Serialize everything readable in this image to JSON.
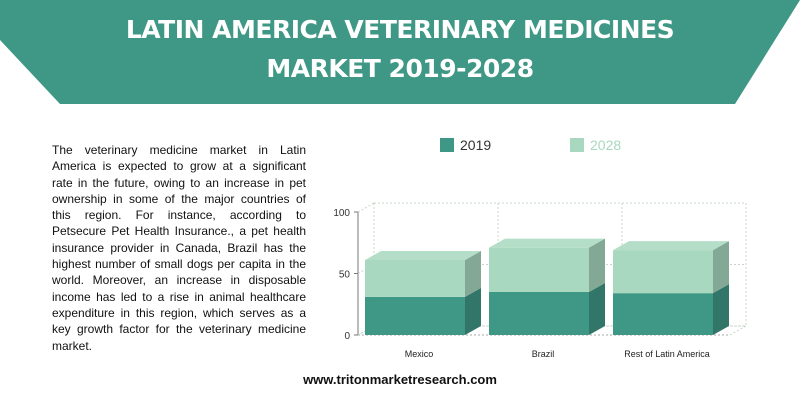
{
  "header": {
    "title_line1": "LATIN AMERICA VETERINARY MEDICINES",
    "title_line2": "MARKET  2019-2028"
  },
  "body": {
    "paragraph": "The veterinary medicine market in Latin America is expected to grow at a significant rate in the future, owing to an increase in pet ownership in some of the major countries of this region. For instance, according to Petsecure Pet Health Insurance., a pet health insurance provider in Canada, Brazil has the highest number of small dogs per capita in the world. Moreover, an increase in disposable income has led to a rise in animal healthcare expenditure in this region, which serves as a key growth factor for the veterinary medicine market."
  },
  "footer": {
    "url": "www.tritonmarketresearch.com"
  },
  "colors": {
    "banner": "#3f9785",
    "series_2019": "#3f9785",
    "series_2028": "#a8d8c0"
  },
  "chart_data": {
    "type": "bar",
    "stacked": true,
    "style": "3d",
    "categories": [
      "Mexico",
      "Brazil",
      "Rest of Latin America"
    ],
    "series": [
      {
        "name": "2019",
        "values": [
          31,
          35,
          34
        ]
      },
      {
        "name": "2028",
        "values": [
          30,
          36,
          35
        ]
      }
    ],
    "yticks": [
      0,
      50,
      100
    ],
    "ylim": [
      0,
      100
    ],
    "legend": "top",
    "grid": true
  }
}
